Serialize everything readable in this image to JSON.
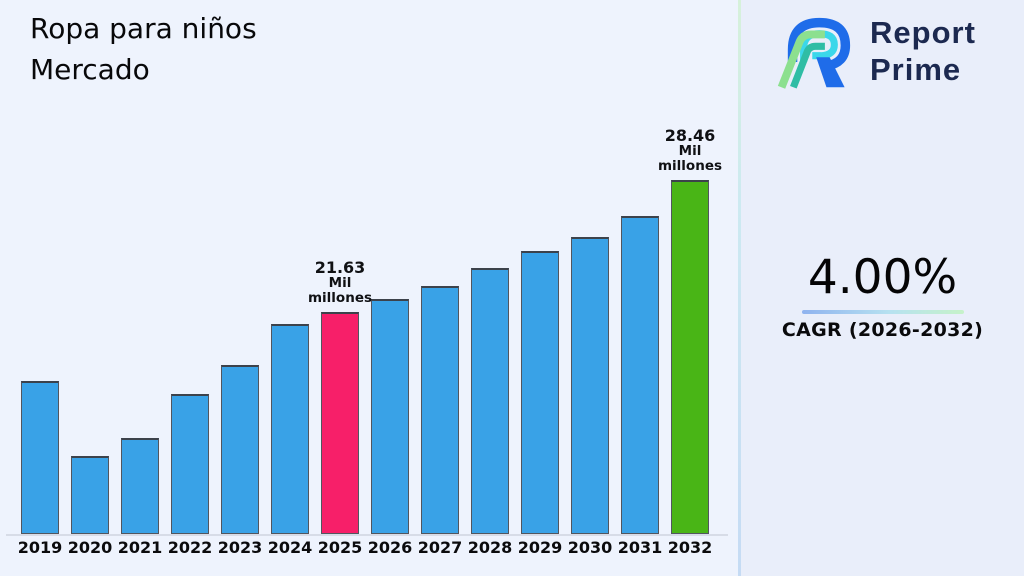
{
  "page": {
    "background": "#e9eefa",
    "chart_panel_background": "#eef3fd"
  },
  "title": {
    "line1": "Ropa para niños",
    "line2": "Mercado"
  },
  "brand": {
    "line1": "Report",
    "line2": "Prime",
    "text_color": "#1c2950",
    "icon_colors": {
      "blue": "#1f6ce9",
      "cyan": "#3bd7ea",
      "light_green": "#8ce08f",
      "teal": "#2fbda5"
    }
  },
  "cagr": {
    "value": "4.00%",
    "label": "CAGR (2026-2032)"
  },
  "chart_data": {
    "type": "bar",
    "title": "Ropa para niños Mercado",
    "unit": "Mil millones",
    "xlabel": "",
    "ylabel": "",
    "grid": false,
    "legend": false,
    "categories": [
      "2019",
      "2020",
      "2021",
      "2022",
      "2023",
      "2024",
      "2025",
      "2026",
      "2027",
      "2028",
      "2029",
      "2030",
      "2031",
      "2032"
    ],
    "values": [
      18.05,
      14.15,
      15.1,
      17.35,
      18.85,
      21.0,
      21.63,
      22.3,
      23.0,
      23.9,
      24.8,
      25.5,
      26.6,
      28.46
    ],
    "labeled_points": [
      {
        "category": "2025",
        "value": 21.63,
        "text": "21.63 Mil millones"
      },
      {
        "category": "2032",
        "value": 28.46,
        "text": "28.46 Mil millones"
      }
    ],
    "ylim": [
      10.1,
      29.0
    ],
    "bar_color_default": "#39a2e7",
    "highlights": [
      {
        "index": 6,
        "color": "#f71f69"
      },
      {
        "index": 13,
        "color": "#49b516"
      }
    ],
    "annotations": [
      {
        "index": 6,
        "lines": [
          "21.63",
          "Mil",
          "millones"
        ]
      },
      {
        "index": 13,
        "lines": [
          "28.46",
          "Mil",
          "millones"
        ]
      }
    ]
  }
}
